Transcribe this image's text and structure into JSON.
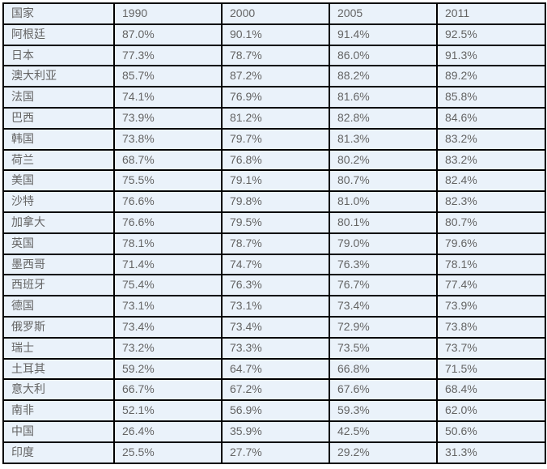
{
  "colors": {
    "page_background": "#ffffff",
    "cell_background": "#eaf2fa",
    "border_color": "#000000",
    "text_color": "#646464"
  },
  "chart_data": {
    "type": "table",
    "title": "",
    "columns": [
      "国家",
      "1990",
      "2000",
      "2005",
      "2011"
    ],
    "rows": [
      [
        "阿根廷",
        "87.0%",
        "90.1%",
        "91.4%",
        "92.5%"
      ],
      [
        "日本",
        "77.3%",
        "78.7%",
        "86.0%",
        "91.3%"
      ],
      [
        "澳大利亚",
        "85.7%",
        "87.2%",
        "88.2%",
        "89.2%"
      ],
      [
        "法国",
        "74.1%",
        "76.9%",
        "81.6%",
        "85.8%"
      ],
      [
        "巴西",
        "73.9%",
        "81.2%",
        "82.8%",
        "84.6%"
      ],
      [
        "韩国",
        "73.8%",
        "79.7%",
        "81.3%",
        "83.2%"
      ],
      [
        "荷兰",
        "68.7%",
        "76.8%",
        "80.2%",
        "83.2%"
      ],
      [
        "美国",
        "75.5%",
        "79.1%",
        "80.7%",
        "82.4%"
      ],
      [
        "沙特",
        "76.6%",
        "79.8%",
        "81.0%",
        "82.3%"
      ],
      [
        "加拿大",
        "76.6%",
        "79.5%",
        "80.1%",
        "80.7%"
      ],
      [
        "英国",
        "78.1%",
        "78.7%",
        "79.0%",
        "79.6%"
      ],
      [
        "墨西哥",
        "71.4%",
        "74.7%",
        "76.3%",
        "78.1%"
      ],
      [
        "西班牙",
        "75.4%",
        "76.3%",
        "76.7%",
        "77.4%"
      ],
      [
        "德国",
        "73.1%",
        "73.1%",
        "73.4%",
        "73.9%"
      ],
      [
        "俄罗斯",
        "73.4%",
        "73.4%",
        "72.9%",
        "73.8%"
      ],
      [
        "瑞士",
        "73.2%",
        "73.3%",
        "73.5%",
        "73.7%"
      ],
      [
        "土耳其",
        "59.2%",
        "64.7%",
        "66.8%",
        "71.5%"
      ],
      [
        "意大利",
        "66.7%",
        "67.2%",
        "67.6%",
        "68.4%"
      ],
      [
        "南非",
        "52.1%",
        "56.9%",
        "59.3%",
        "62.0%"
      ],
      [
        "中国",
        "26.4%",
        "35.9%",
        "42.5%",
        "50.6%"
      ],
      [
        "印度",
        "25.5%",
        "27.7%",
        "29.2%",
        "31.3%"
      ]
    ]
  }
}
